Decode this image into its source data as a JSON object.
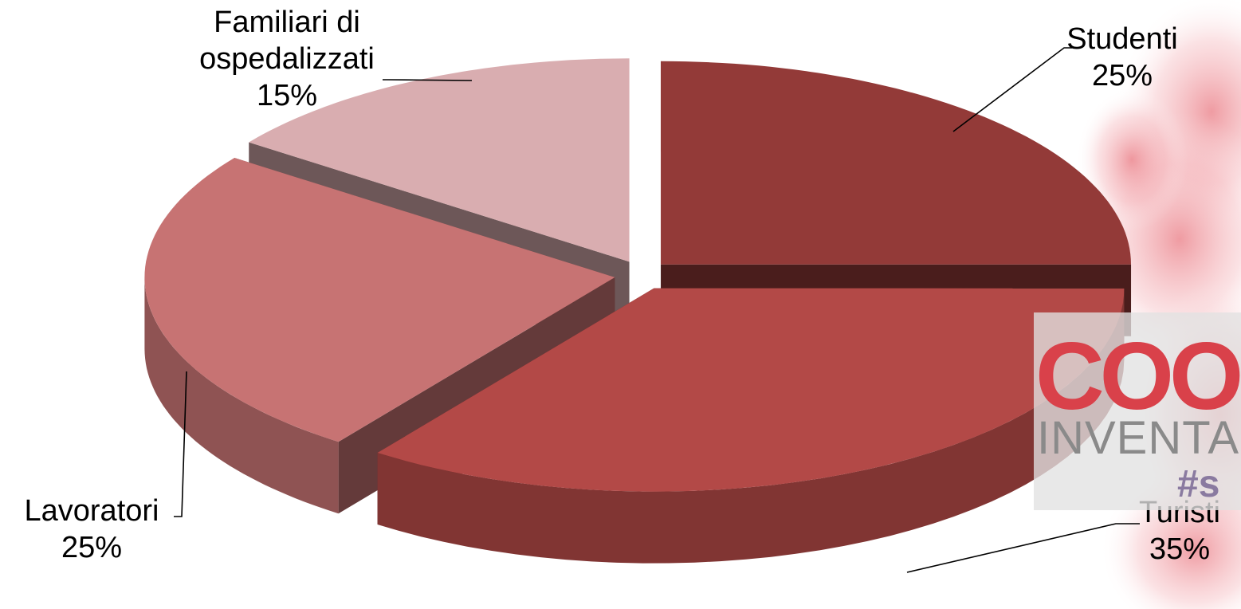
{
  "chart_data": {
    "type": "pie",
    "style": "3d-exploded",
    "title": "",
    "slices": [
      {
        "label": "Studenti",
        "value": 25,
        "value_label": "25%",
        "color": "#933a38"
      },
      {
        "label": "Turisti",
        "value": 35,
        "value_label": "35%",
        "color": "#b34947"
      },
      {
        "label": "Lavoratori",
        "value": 25,
        "value_label": "25%",
        "color": "#c77373"
      },
      {
        "label": "Familiari di ospedalizzati",
        "value_label": "15%",
        "value": 15,
        "color": "#d9adb0",
        "label_lines": [
          "Familiari di",
          "ospedalizzati"
        ]
      }
    ],
    "legend": "none",
    "data_labels": "outside-with-leader-lines"
  },
  "watermark": {
    "mark_text": "COO",
    "word_text": "INVENTA",
    "hash_text": "#s",
    "accent_color": "#d9414a"
  }
}
